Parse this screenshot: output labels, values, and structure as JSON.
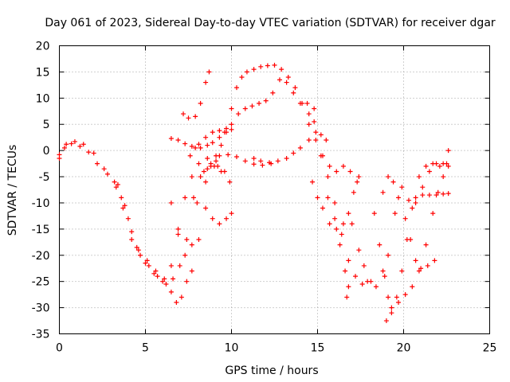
{
  "chart_data": {
    "type": "scatter",
    "title": "Day 061 of 2023, Sidereal Day-to-day VTEC variation (SDTVAR) for receiver dgar",
    "xlabel": "GPS time / hours",
    "ylabel": "SDTVAR / TECUs",
    "xlim": [
      0,
      25
    ],
    "ylim": [
      -35,
      20
    ],
    "xticks": [
      0,
      5,
      10,
      15,
      20,
      25
    ],
    "yticks": [
      -35,
      -30,
      -25,
      -20,
      -15,
      -10,
      -5,
      0,
      5,
      10,
      15,
      20
    ],
    "x_tick_labels": [
      "0",
      "5",
      "10",
      "15",
      "20",
      "25"
    ],
    "y_tick_labels": [
      "-35",
      "-30",
      "-25",
      "-20",
      "-15",
      "-10",
      "-5",
      "0",
      "5",
      "10",
      "15",
      "20"
    ],
    "grid": true,
    "marker": "plus",
    "color": "#ff0000",
    "series": [
      {
        "points": [
          [
            0,
            -1.5
          ],
          [
            0.3,
            0.5
          ],
          [
            0.7,
            1.3
          ],
          [
            1.2,
            0.8
          ],
          [
            1.7,
            -0.3
          ],
          [
            2.2,
            -2.5
          ],
          [
            2.8,
            -4.5
          ],
          [
            3.3,
            -7
          ],
          [
            3.7,
            -11
          ],
          [
            4.2,
            -17
          ],
          [
            4.7,
            -20
          ],
          [
            5.2,
            -22
          ],
          [
            5.7,
            -24
          ],
          [
            6.2,
            -25.5
          ],
          [
            6.6,
            -24.5
          ],
          [
            7,
            -22
          ],
          [
            7.4,
            -17
          ],
          [
            7.8,
            -9
          ],
          [
            8.2,
            -5
          ],
          [
            8.6,
            -3.5
          ],
          [
            9,
            -3
          ],
          [
            9.4,
            -4
          ]
        ]
      },
      {
        "points": [
          [
            0,
            -0.8
          ],
          [
            0.4,
            1.2
          ],
          [
            0.9,
            1.7
          ],
          [
            1.4,
            1.2
          ],
          [
            2,
            -0.5
          ],
          [
            2.6,
            -3.5
          ],
          [
            3.2,
            -6
          ],
          [
            3.6,
            -9
          ],
          [
            4,
            -13
          ],
          [
            4.5,
            -18.5
          ],
          [
            5,
            -21.5
          ],
          [
            5.5,
            -23.5
          ],
          [
            6,
            -25
          ],
          [
            6.5,
            -27
          ],
          [
            6.8,
            -29
          ],
          [
            7.1,
            -28
          ],
          [
            7.4,
            -25
          ],
          [
            7.7,
            -18
          ],
          [
            8,
            -10
          ],
          [
            8.4,
            -4
          ],
          [
            8.8,
            -2.5
          ],
          [
            9.2,
            -3
          ]
        ]
      },
      {
        "points": [
          [
            3.4,
            -6.5
          ],
          [
            3.8,
            -10.5
          ],
          [
            4.2,
            -15.5
          ],
          [
            4.6,
            -19
          ],
          [
            5.1,
            -21
          ],
          [
            5.6,
            -23
          ],
          [
            6.1,
            -24.5
          ],
          [
            6.5,
            -22
          ],
          [
            6.9,
            -16
          ],
          [
            7.3,
            -9
          ],
          [
            7.7,
            -5
          ],
          [
            8.1,
            -2.5
          ],
          [
            8.6,
            -1.5
          ],
          [
            9.1,
            -2
          ],
          [
            9.6,
            -4
          ],
          [
            9.9,
            -6
          ]
        ]
      },
      {
        "points": [
          [
            6.5,
            -10
          ],
          [
            6.9,
            -15
          ],
          [
            7.3,
            -20
          ],
          [
            7.7,
            -23
          ],
          [
            8.1,
            -17
          ],
          [
            8.5,
            -11
          ],
          [
            8.9,
            -13
          ],
          [
            9.3,
            -14
          ],
          [
            9.7,
            -13
          ],
          [
            10,
            -12
          ]
        ]
      },
      {
        "points": [
          [
            7.6,
            -1
          ],
          [
            7.9,
            0.5
          ],
          [
            8.2,
            0.5
          ],
          [
            8.6,
            1
          ],
          [
            8.9,
            1.5
          ],
          [
            9.3,
            2.5
          ],
          [
            9.6,
            3.5
          ],
          [
            10,
            4
          ]
        ]
      },
      {
        "points": [
          [
            6.5,
            2.3
          ],
          [
            6.9,
            2
          ],
          [
            7.3,
            1.3
          ],
          [
            7.7,
            0.8
          ],
          [
            8.1,
            1.2
          ],
          [
            8.5,
            2.5
          ],
          [
            8.9,
            3.5
          ],
          [
            9.3,
            3.8
          ],
          [
            9.7,
            4.2
          ],
          [
            10,
            5
          ]
        ]
      },
      {
        "points": [
          [
            7.2,
            7
          ],
          [
            7.5,
            6.2
          ],
          [
            7.9,
            6.5
          ],
          [
            8.2,
            9
          ],
          [
            8.5,
            13
          ],
          [
            8.7,
            15
          ]
        ]
      },
      {
        "points": [
          [
            8.5,
            -6
          ],
          [
            8.8,
            -3
          ],
          [
            9.1,
            -1
          ],
          [
            9.4,
            1
          ],
          [
            9.7,
            3.5
          ],
          [
            10,
            8
          ],
          [
            10.3,
            12
          ],
          [
            10.6,
            14
          ],
          [
            10.9,
            15
          ],
          [
            11.3,
            15.5
          ],
          [
            11.7,
            16
          ],
          [
            12.1,
            16.2
          ],
          [
            12.5,
            16.3
          ],
          [
            12.9,
            15.5
          ],
          [
            13.3,
            14
          ],
          [
            13.7,
            12
          ],
          [
            14.1,
            9
          ],
          [
            14.5,
            7
          ],
          [
            14.8,
            5.5
          ]
        ]
      },
      {
        "points": [
          [
            10.4,
            7
          ],
          [
            10.8,
            8
          ],
          [
            11.2,
            8.5
          ],
          [
            11.6,
            9
          ],
          [
            12,
            9.5
          ],
          [
            12.4,
            11
          ],
          [
            12.8,
            13.5
          ],
          [
            13.2,
            13
          ],
          [
            13.6,
            11
          ],
          [
            14,
            9
          ],
          [
            14.4,
            9
          ],
          [
            14.8,
            8
          ]
        ]
      },
      {
        "points": [
          [
            11.3,
            -1.5
          ],
          [
            11.7,
            -2
          ],
          [
            12.2,
            -2.3
          ],
          [
            12.7,
            -2
          ],
          [
            13.2,
            -1.5
          ],
          [
            13.6,
            -0.5
          ],
          [
            14,
            0.5
          ],
          [
            14.5,
            2
          ],
          [
            14.9,
            3.5
          ],
          [
            15.2,
            3
          ],
          [
            15.5,
            2
          ]
        ]
      },
      {
        "points": [
          [
            9.3,
            -1
          ],
          [
            9.8,
            -0.8
          ],
          [
            10.3,
            -1.2
          ],
          [
            10.8,
            -2
          ],
          [
            11.3,
            -2.6
          ],
          [
            11.8,
            -2.8
          ],
          [
            12.3,
            -2.5
          ]
        ]
      },
      {
        "points": [
          [
            14.5,
            5
          ],
          [
            14.9,
            2
          ],
          [
            15.3,
            -1
          ],
          [
            15.7,
            -3
          ],
          [
            16.1,
            -4
          ],
          [
            16.5,
            -3
          ],
          [
            16.9,
            -4
          ],
          [
            17.3,
            -6
          ]
        ]
      },
      {
        "points": [
          [
            14.7,
            -6
          ],
          [
            15,
            -9
          ],
          [
            15.3,
            -11
          ],
          [
            15.7,
            -14
          ],
          [
            16.1,
            -15
          ],
          [
            16.5,
            -14
          ],
          [
            16.8,
            -12
          ],
          [
            17.1,
            -8
          ],
          [
            17.4,
            -5
          ]
        ]
      },
      {
        "points": [
          [
            15.2,
            -1
          ],
          [
            15.6,
            -5
          ],
          [
            16,
            -10
          ],
          [
            16.4,
            -16
          ],
          [
            16.8,
            -21
          ],
          [
            17.2,
            -24
          ],
          [
            17.6,
            -25.5
          ],
          [
            17.9,
            -25
          ]
        ]
      },
      {
        "points": [
          [
            15.6,
            -9
          ],
          [
            16,
            -13
          ],
          [
            16.3,
            -18
          ],
          [
            16.6,
            -23
          ],
          [
            16.7,
            -28
          ],
          [
            16.8,
            -26
          ]
        ]
      },
      {
        "points": [
          [
            17,
            -14
          ],
          [
            17.4,
            -19
          ],
          [
            17.7,
            -22
          ],
          [
            18.1,
            -25
          ],
          [
            18.4,
            -26
          ],
          [
            18.8,
            -23
          ],
          [
            19.1,
            -20
          ],
          [
            19.5,
            -12
          ],
          [
            19.9,
            -7
          ],
          [
            20.3,
            -9.5
          ],
          [
            20.7,
            -9
          ],
          [
            21.1,
            -8.5
          ],
          [
            21.5,
            -8.5
          ],
          [
            21.9,
            -8.5
          ],
          [
            22.3,
            -8.3
          ],
          [
            22.6,
            -8.2
          ]
        ]
      },
      {
        "points": [
          [
            18.3,
            -12
          ],
          [
            18.6,
            -18
          ],
          [
            18.9,
            -24
          ],
          [
            19.1,
            -28
          ],
          [
            19.3,
            -30
          ],
          [
            19.6,
            -28
          ],
          [
            19.9,
            -23
          ],
          [
            20.2,
            -17
          ],
          [
            20.5,
            -11
          ],
          [
            20.9,
            -5
          ],
          [
            21.3,
            -3
          ],
          [
            21.7,
            -2.5
          ],
          [
            22.1,
            -3
          ],
          [
            22.5,
            -2.5
          ]
        ]
      },
      {
        "points": [
          [
            18.8,
            -8
          ],
          [
            19.1,
            -5
          ],
          [
            19.4,
            -6
          ],
          [
            19.7,
            -9
          ],
          [
            20.1,
            -13
          ],
          [
            20.4,
            -17
          ],
          [
            20.7,
            -21
          ],
          [
            21,
            -22.5
          ],
          [
            21.4,
            -22
          ],
          [
            21.8,
            -21
          ]
        ]
      },
      {
        "points": [
          [
            19,
            -32.5
          ],
          [
            19.3,
            -31
          ],
          [
            19.7,
            -29
          ],
          [
            20.1,
            -27.5
          ],
          [
            20.5,
            -26
          ],
          [
            20.9,
            -23
          ],
          [
            21.3,
            -18
          ],
          [
            21.7,
            -12
          ],
          [
            22,
            -8
          ],
          [
            22.3,
            -5
          ],
          [
            22.6,
            -3
          ]
        ]
      },
      {
        "points": [
          [
            20.7,
            -10
          ],
          [
            21.1,
            -7
          ],
          [
            21.5,
            -4
          ],
          [
            21.9,
            -2.5
          ],
          [
            22.3,
            -2.5
          ],
          [
            22.6,
            0
          ]
        ]
      }
    ]
  }
}
